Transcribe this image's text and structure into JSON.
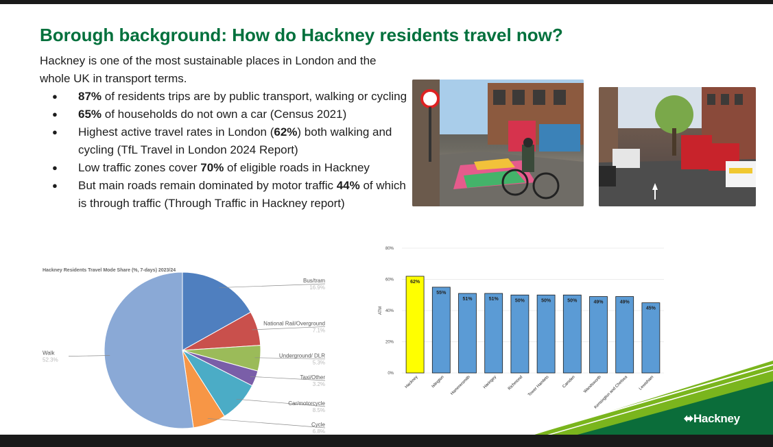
{
  "slide": {
    "title": "Borough background: How do Hackney residents travel now?",
    "intro": "Hackney is one of the most sustainable places in London and the whole UK in transport terms.",
    "bullets": [
      {
        "bold": "87%",
        "text": " of residents trips are by public transport, walking or cycling"
      },
      {
        "pre": "",
        "bold": "65%",
        "text": " of households do not own a car (Census 2021)"
      },
      {
        "pre": "Highest active travel rates in London (",
        "bold": "62%",
        "text": ") both walking and cycling (TfL Travel in London 2024 Report)"
      },
      {
        "pre": "Low traffic zones cover ",
        "bold": "70%",
        "text": " of eligible roads in Hackney"
      },
      {
        "pre": "But main roads remain dominated by motor traffic ",
        "bold": "44%",
        "text": " of which is through traffic (Through Traffic in Hackney report)"
      }
    ],
    "logo": "Hackney",
    "colors": {
      "title": "#00703c",
      "swoosh_green": "#7ab51d",
      "swoosh_dark": "#0b6d3a"
    }
  },
  "chart_data": [
    {
      "type": "pie",
      "title": "Hackney Residents Travel Mode Share (%, 7-days) 2023/24",
      "categories": [
        "Bus/tram",
        "National Rail/Overground",
        "Underground/ DLR",
        "Taxi/Other",
        "Car/motorcycle",
        "Cycle",
        "Walk"
      ],
      "values": [
        16.9,
        7.1,
        5.3,
        3.2,
        8.5,
        6.8,
        52.3
      ],
      "value_labels": [
        "16.9%",
        "7.1%",
        "5.3%",
        "3.2%",
        "8.5%",
        "6.8%",
        "52.3%"
      ],
      "colors": [
        "#4f7fbf",
        "#c9504c",
        "#9bbb59",
        "#7a5ea8",
        "#4bacc6",
        "#f79646",
        "#8aa9d6"
      ]
    },
    {
      "type": "bar",
      "categories": [
        "Hackney",
        "Islington",
        "Hammersmith",
        "Haringey",
        "Richmond",
        "Tower Hamlets",
        "Camden",
        "Wandsworth",
        "Kensington and Chelsea",
        "Lewisham"
      ],
      "values": [
        62,
        55,
        51,
        51,
        50,
        50,
        50,
        49,
        49,
        45
      ],
      "value_labels": [
        "62%",
        "55%",
        "51%",
        "51%",
        "50%",
        "50%",
        "50%",
        "49%",
        "49%",
        "45%"
      ],
      "highlight_index": 0,
      "highlight_color": "#ffff00",
      "bar_color": "#5b9bd5",
      "ylim": [
        0,
        80
      ],
      "yticks": [
        "0%",
        "20%",
        "40%",
        "60%",
        "80%"
      ],
      "ylabel": "ATM"
    }
  ]
}
